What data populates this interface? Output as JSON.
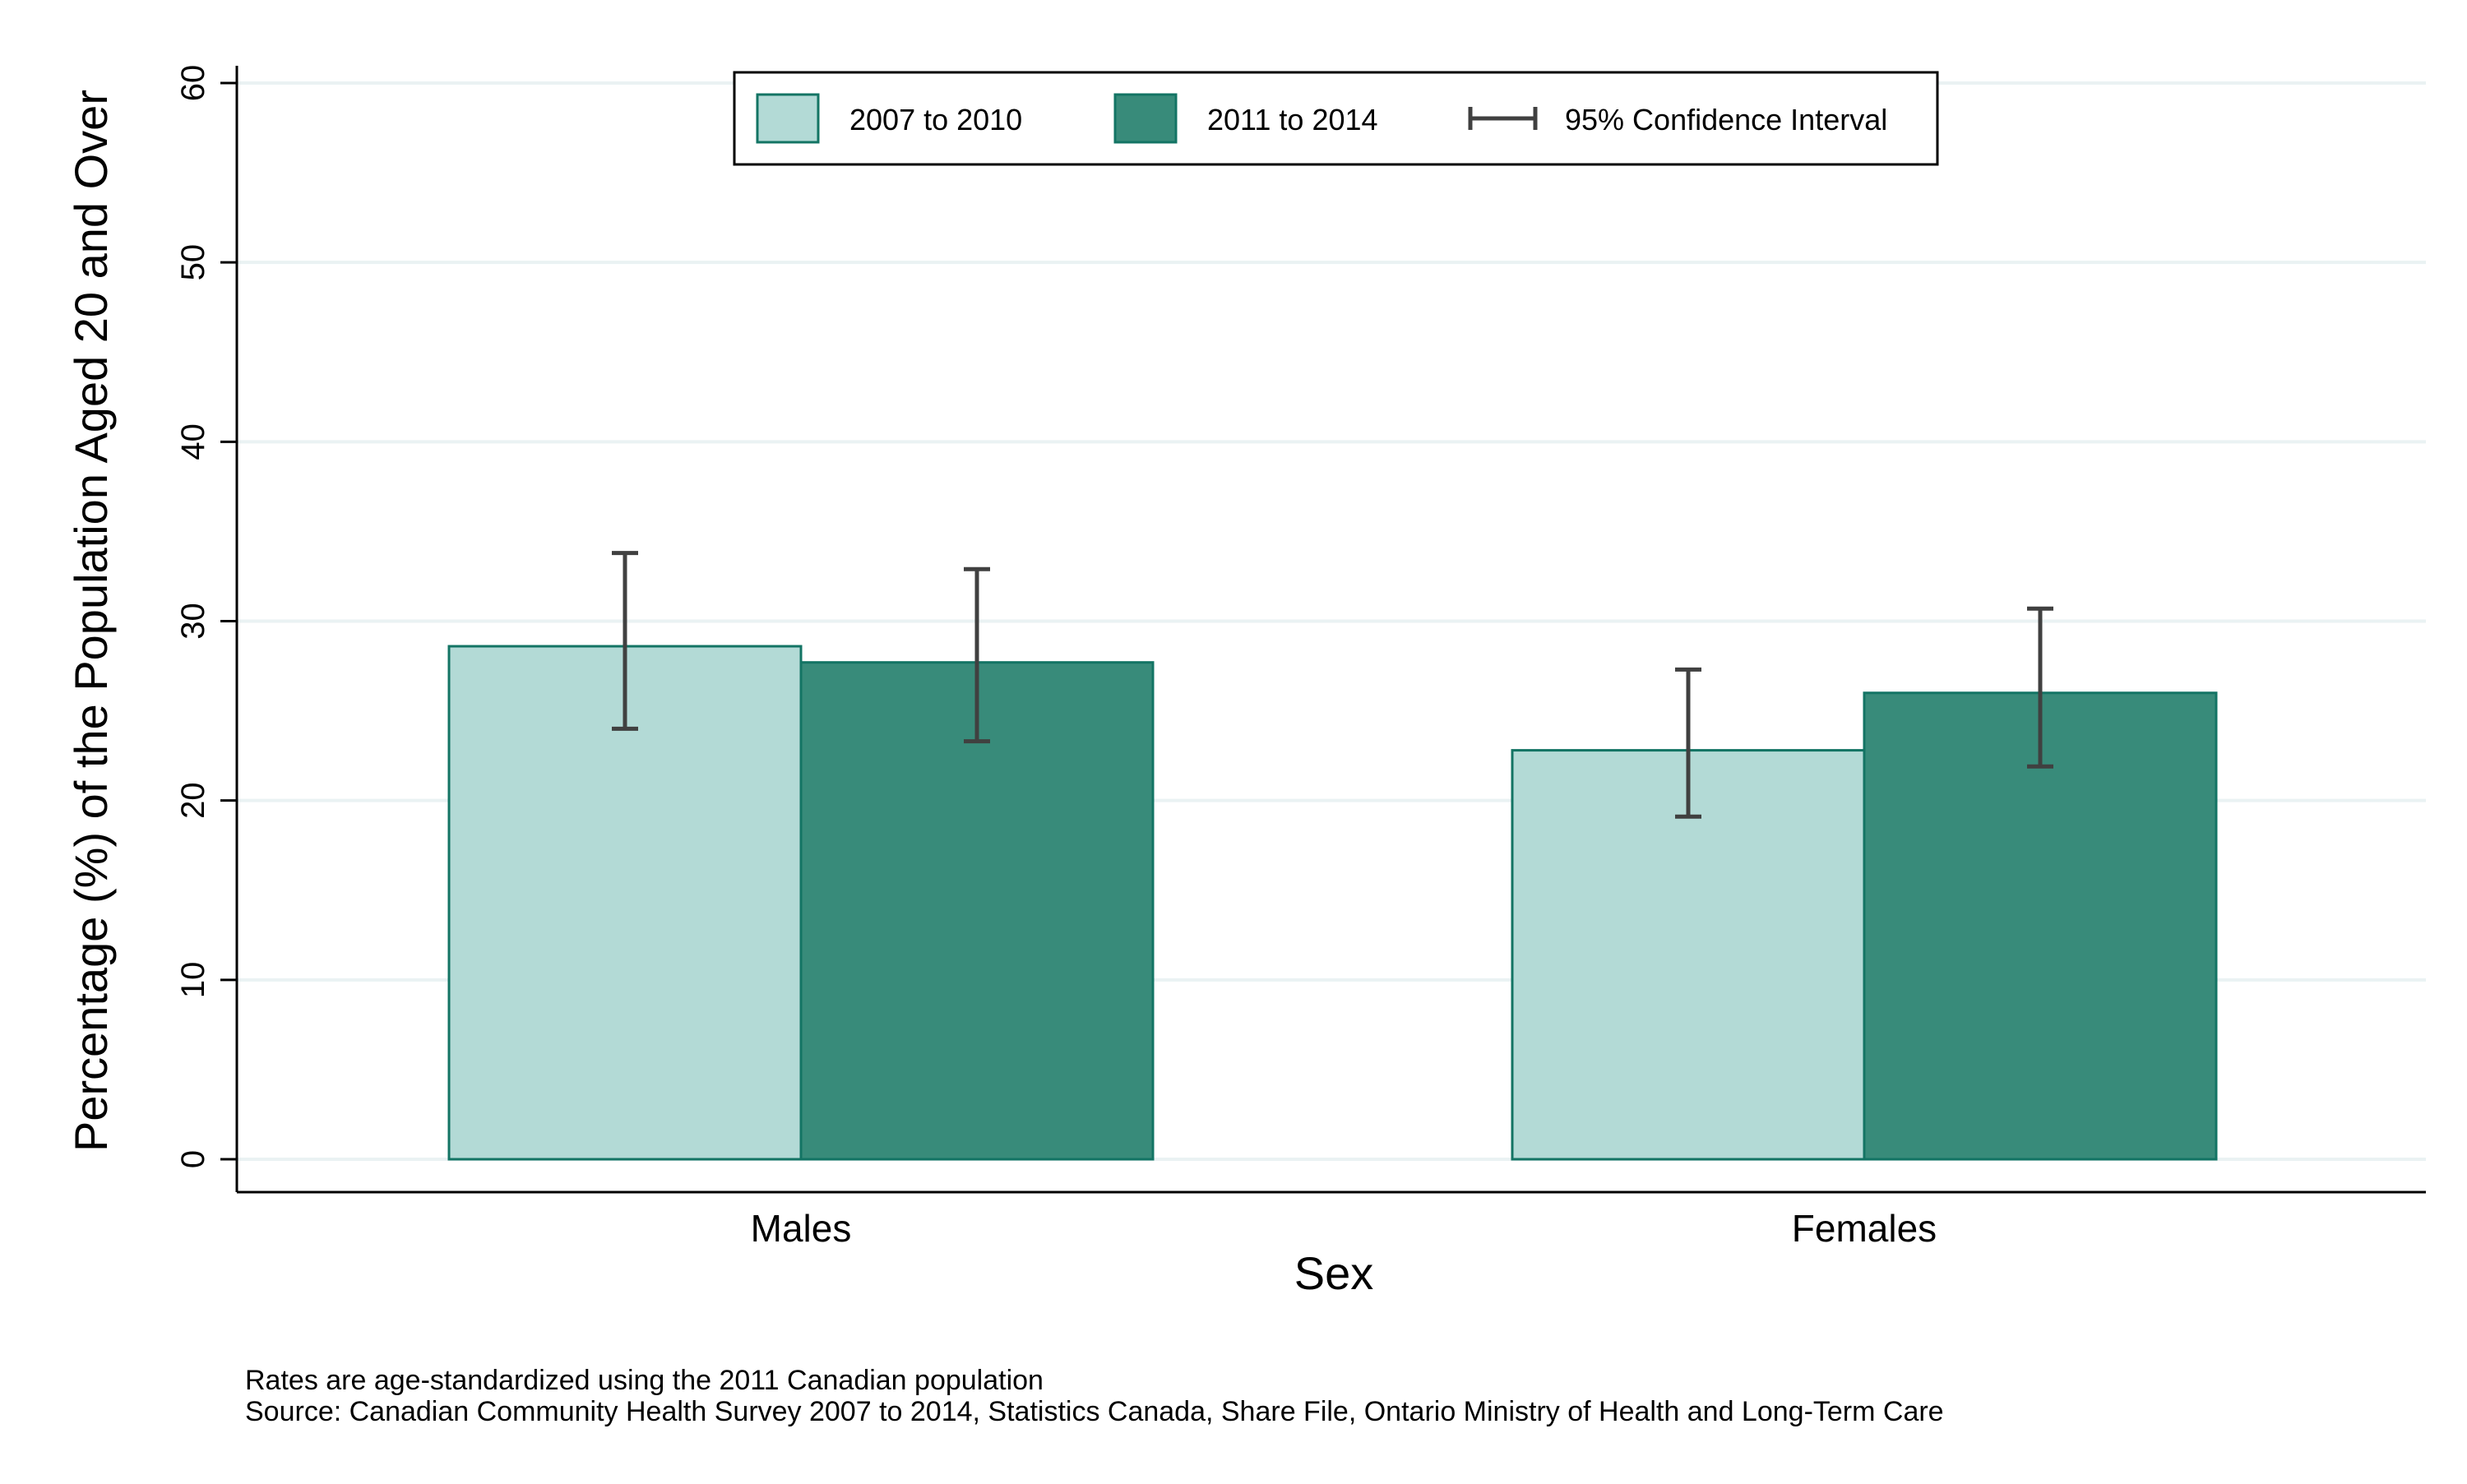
{
  "chart_data": {
    "type": "bar",
    "title": "",
    "xlabel": "Sex",
    "ylabel": "Percentage (%) of the Population Aged 20 and Over",
    "categories": [
      "Males",
      "Females"
    ],
    "ylim": [
      0,
      60
    ],
    "yticks": [
      0,
      10,
      20,
      30,
      40,
      50,
      60
    ],
    "grid": true,
    "legend_position": "top-center",
    "series": [
      {
        "name": "2007 to 2010",
        "color": "#b3dad6",
        "values": [
          28.6,
          22.8
        ],
        "ci_low": [
          24.0,
          19.1
        ],
        "ci_high": [
          33.8,
          27.3
        ]
      },
      {
        "name": "2011 to 2014",
        "color": "#388b7a",
        "values": [
          27.7,
          26.0
        ],
        "ci_low": [
          23.3,
          21.9
        ],
        "ci_high": [
          32.9,
          30.7
        ]
      }
    ],
    "ci_legend_label": "95% Confidence Interval",
    "bar_edge_color": "#137464",
    "errorbar_color": "#404040"
  },
  "notes": {
    "line1": "Rates are age-standardized using the 2011 Canadian population",
    "line2": "Source: Canadian Community Health Survey 2007 to 2014, Statistics Canada, Share File, Ontario Ministry of Health and Long-Term Care"
  }
}
